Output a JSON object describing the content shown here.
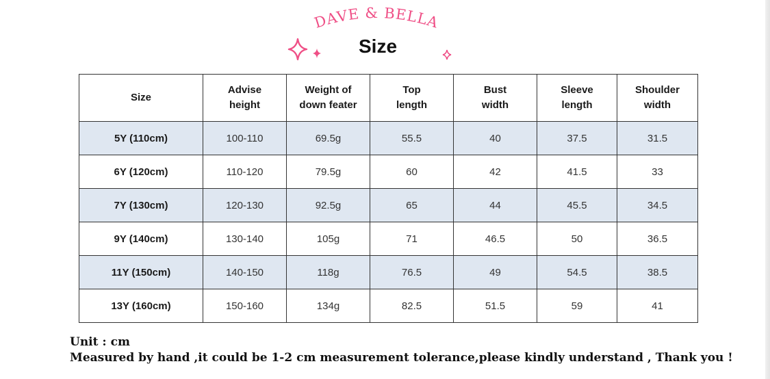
{
  "brand": "DAVE & BELLA",
  "title": "Size",
  "colors": {
    "brand_pink": "#ef4f86",
    "row_shade": "#dfe7f1",
    "border": "#333333"
  },
  "decorations": [
    "sparkle-icon",
    "sparkle-icon",
    "sparkle-icon"
  ],
  "table": {
    "headers": [
      "Size",
      "Advise\nheight",
      "Weight of\ndown feater",
      "Top\nlength",
      "Bust\nwidth",
      "Sleeve\nlength",
      "Shoulder\nwidth"
    ],
    "rows": [
      [
        "5Y (110cm)",
        "100-110",
        "69.5g",
        "55.5",
        "40",
        "37.5",
        "31.5"
      ],
      [
        "6Y (120cm)",
        "110-120",
        "79.5g",
        "60",
        "42",
        "41.5",
        "33"
      ],
      [
        "7Y (130cm)",
        "120-130",
        "92.5g",
        "65",
        "44",
        "45.5",
        "34.5"
      ],
      [
        "9Y (140cm)",
        "130-140",
        "105g",
        "71",
        "46.5",
        "50",
        "36.5"
      ],
      [
        "11Y (150cm)",
        "140-150",
        "118g",
        "76.5",
        "49",
        "54.5",
        "38.5"
      ],
      [
        "13Y (160cm)",
        "150-160",
        "134g",
        "82.5",
        "51.5",
        "59",
        "41"
      ]
    ]
  },
  "notes": {
    "unit": "Unit : cm",
    "disclaimer": "Measured by hand ,it could be 1-2 cm measurement tolerance,please kindly understand , Thank you !"
  }
}
